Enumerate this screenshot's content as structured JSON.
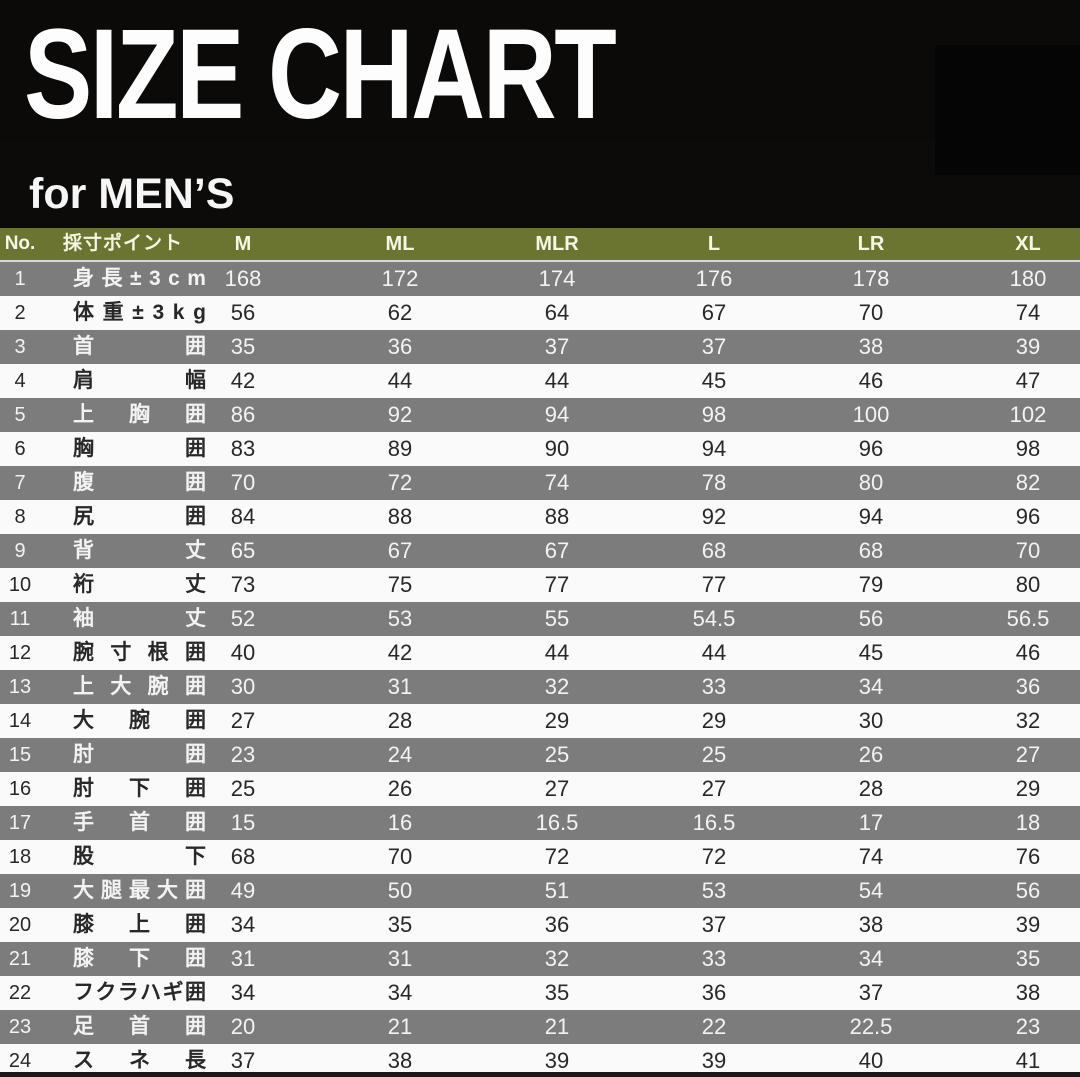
{
  "chart_data": {
    "type": "table",
    "title": "SIZE CHART",
    "subtitle": "for MEN’S",
    "header": {
      "no": "No.",
      "point": "採寸ポイント",
      "sizes": [
        "M",
        "ML",
        "MLR",
        "L",
        "LR",
        "XL"
      ]
    },
    "rows": [
      {
        "no": "1",
        "label": "身長±3cm",
        "values": [
          "168",
          "172",
          "174",
          "176",
          "178",
          "180"
        ]
      },
      {
        "no": "2",
        "label": "体重±3kg",
        "values": [
          "56",
          "62",
          "64",
          "67",
          "70",
          "74"
        ]
      },
      {
        "no": "3",
        "label": "首囲",
        "values": [
          "35",
          "36",
          "37",
          "37",
          "38",
          "39"
        ]
      },
      {
        "no": "4",
        "label": "肩幅",
        "values": [
          "42",
          "44",
          "44",
          "45",
          "46",
          "47"
        ]
      },
      {
        "no": "5",
        "label": "上胸囲",
        "values": [
          "86",
          "92",
          "94",
          "98",
          "100",
          "102"
        ]
      },
      {
        "no": "6",
        "label": "胸囲",
        "values": [
          "83",
          "89",
          "90",
          "94",
          "96",
          "98"
        ]
      },
      {
        "no": "7",
        "label": "腹囲",
        "values": [
          "70",
          "72",
          "74",
          "78",
          "80",
          "82"
        ]
      },
      {
        "no": "8",
        "label": "尻囲",
        "values": [
          "84",
          "88",
          "88",
          "92",
          "94",
          "96"
        ]
      },
      {
        "no": "9",
        "label": "背丈",
        "values": [
          "65",
          "67",
          "67",
          "68",
          "68",
          "70"
        ]
      },
      {
        "no": "10",
        "label": "裄丈",
        "values": [
          "73",
          "75",
          "77",
          "77",
          "79",
          "80"
        ]
      },
      {
        "no": "11",
        "label": "袖丈",
        "values": [
          "52",
          "53",
          "55",
          "54.5",
          "56",
          "56.5"
        ]
      },
      {
        "no": "12",
        "label": "腕寸根囲",
        "values": [
          "40",
          "42",
          "44",
          "44",
          "45",
          "46"
        ]
      },
      {
        "no": "13",
        "label": "上大腕囲",
        "values": [
          "30",
          "31",
          "32",
          "33",
          "34",
          "36"
        ]
      },
      {
        "no": "14",
        "label": "大腕囲",
        "values": [
          "27",
          "28",
          "29",
          "29",
          "30",
          "32"
        ]
      },
      {
        "no": "15",
        "label": "肘囲",
        "values": [
          "23",
          "24",
          "25",
          "25",
          "26",
          "27"
        ]
      },
      {
        "no": "16",
        "label": "肘下囲",
        "values": [
          "25",
          "26",
          "27",
          "27",
          "28",
          "29"
        ]
      },
      {
        "no": "17",
        "label": "手首囲",
        "values": [
          "15",
          "16",
          "16.5",
          "16.5",
          "17",
          "18"
        ]
      },
      {
        "no": "18",
        "label": "股下",
        "values": [
          "68",
          "70",
          "72",
          "72",
          "74",
          "76"
        ]
      },
      {
        "no": "19",
        "label": "大腿最大囲",
        "values": [
          "49",
          "50",
          "51",
          "53",
          "54",
          "56"
        ]
      },
      {
        "no": "20",
        "label": "膝上囲",
        "values": [
          "34",
          "35",
          "36",
          "37",
          "38",
          "39"
        ]
      },
      {
        "no": "21",
        "label": "膝下囲",
        "values": [
          "31",
          "31",
          "32",
          "33",
          "34",
          "35"
        ]
      },
      {
        "no": "22",
        "label": "フクラハギ囲",
        "values": [
          "34",
          "34",
          "35",
          "36",
          "37",
          "38"
        ]
      },
      {
        "no": "23",
        "label": "足首囲",
        "values": [
          "20",
          "21",
          "21",
          "22",
          "22.5",
          "23"
        ]
      },
      {
        "no": "24",
        "label": "スネ長",
        "values": [
          "37",
          "38",
          "39",
          "39",
          "40",
          "41"
        ]
      }
    ]
  },
  "colors": {
    "page_bg": "#0b0a08",
    "header_bg": "#6c7530",
    "header_text": "#f6f6e6",
    "row_gray": "#7c7c7c",
    "row_white": "#fafafa",
    "title_text": "#fdfdfd"
  }
}
